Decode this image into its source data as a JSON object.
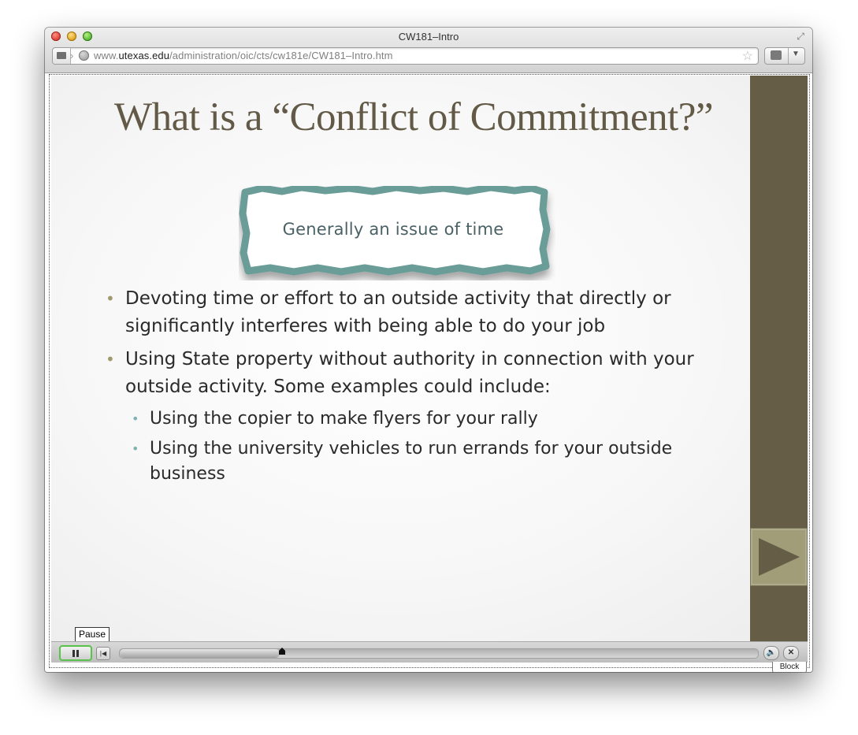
{
  "window": {
    "title": "CW181–Intro",
    "url_prefix": "www.",
    "url_host": "utexas.edu",
    "url_path": "/administration/oic/cts/cw181e/CW181–Intro.htm"
  },
  "slide": {
    "title": "What is a “Conflict of Commitment?”",
    "callout": "Generally an issue of time",
    "bullets": [
      "Devoting time or effort to an outside activity that directly or significantly interferes with being able to do your job",
      "Using State property without authority in connection with your outside activity. Some examples could include:"
    ],
    "sub_bullets": [
      "Using the copier to make flyers for your rally",
      "Using the university vehicles to run errands for your outside business"
    ]
  },
  "player": {
    "tooltip": "Pause",
    "progress": 0.25,
    "block_label": "Block"
  },
  "colors": {
    "title": "#625a46",
    "side_panel": "#655d45",
    "next_button": "#a29d79",
    "callout_border": "#6a9c98",
    "bullet": "#a19a6c",
    "sub_bullet": "#7fb2b2"
  },
  "icons": {
    "next": "play-triangle-icon",
    "pause": "pause-icon",
    "restart": "skip-back-icon",
    "volume": "speaker-icon",
    "close": "close-icon"
  }
}
